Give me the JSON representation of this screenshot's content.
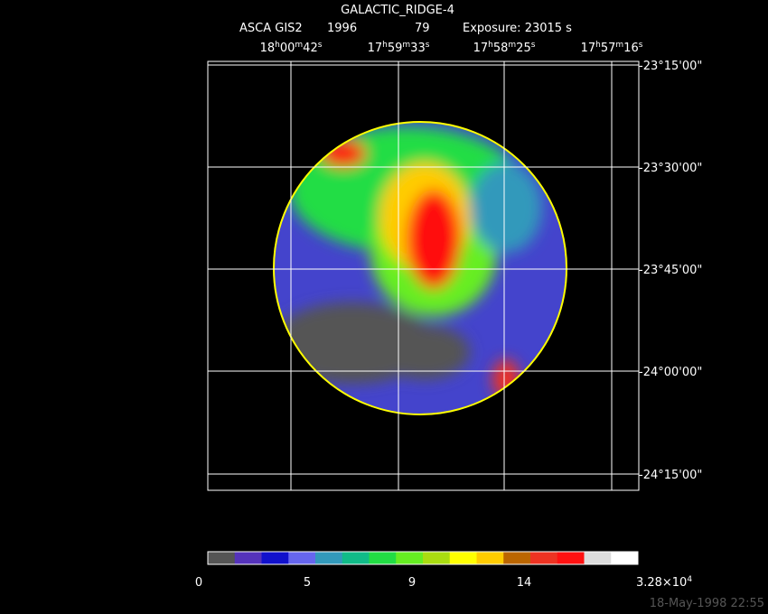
{
  "header": {
    "title": "GALACTIC_RIDGE-4",
    "instrument": "ASCA GIS2",
    "year": "1996",
    "sequence": "79",
    "exposure": "Exposure: 23015 s"
  },
  "ra_labels": [
    [
      "18",
      "h",
      "00",
      "m",
      "42",
      "s"
    ],
    [
      "17",
      "h",
      "59",
      "m",
      "33",
      "s"
    ],
    [
      "17",
      "h",
      "58",
      "m",
      "25",
      "s"
    ],
    [
      "17",
      "h",
      "57",
      "m",
      "16",
      "s"
    ]
  ],
  "dec_labels": [
    "-23°15'00\"",
    "-23°30'00\"",
    "-23°45'00\"",
    "-24°00'00\"",
    "-24°15'00\""
  ],
  "colorbar": {
    "colors": [
      "#555555",
      "#5533bb",
      "#1111cc",
      "#6666ee",
      "#3399bb",
      "#11bb88",
      "#22dd44",
      "#66ee22",
      "#aadd11",
      "#ffff00",
      "#ffcc00",
      "#bb6600",
      "#ee3322",
      "#ff1111",
      "#dddddd",
      "#ffffff"
    ],
    "labels": [
      [
        "0"
      ],
      [
        "5"
      ],
      [
        "9"
      ],
      [
        "14"
      ],
      [
        "3.28×10",
        "4"
      ]
    ]
  },
  "timestamp": "18-May-1998 22:55"
}
